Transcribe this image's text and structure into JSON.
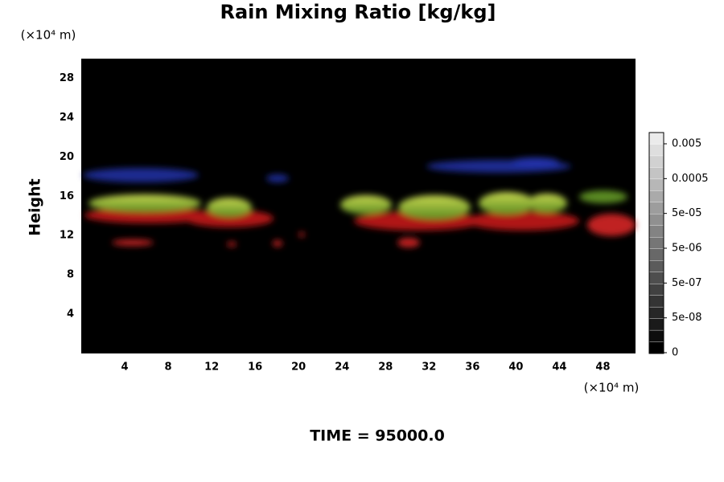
{
  "chart_data": {
    "type": "image",
    "title": "Rain Mixing Ratio [kg/kg]",
    "ylabel": "Height",
    "y_unit": "(×10⁴ m)",
    "x_unit": "(×10⁴ m)",
    "footer": "TIME = 95000.0",
    "xlim": [
      0,
      51
    ],
    "xticks": [
      4,
      8,
      12,
      16,
      20,
      24,
      28,
      32,
      36,
      40,
      44,
      48
    ],
    "ylim": [
      0,
      30
    ],
    "yticks": [
      4,
      8,
      12,
      16,
      20,
      24,
      28
    ],
    "colorbar_ticks": [
      0,
      {
        "value": 5e-08,
        "label": "5e-08"
      },
      {
        "value": 5e-07,
        "label": "5e-07"
      },
      {
        "value": 5e-06,
        "label": "5e-06"
      },
      {
        "value": 5e-05,
        "label": "5e-05"
      },
      0.0005,
      0.005
    ]
  }
}
